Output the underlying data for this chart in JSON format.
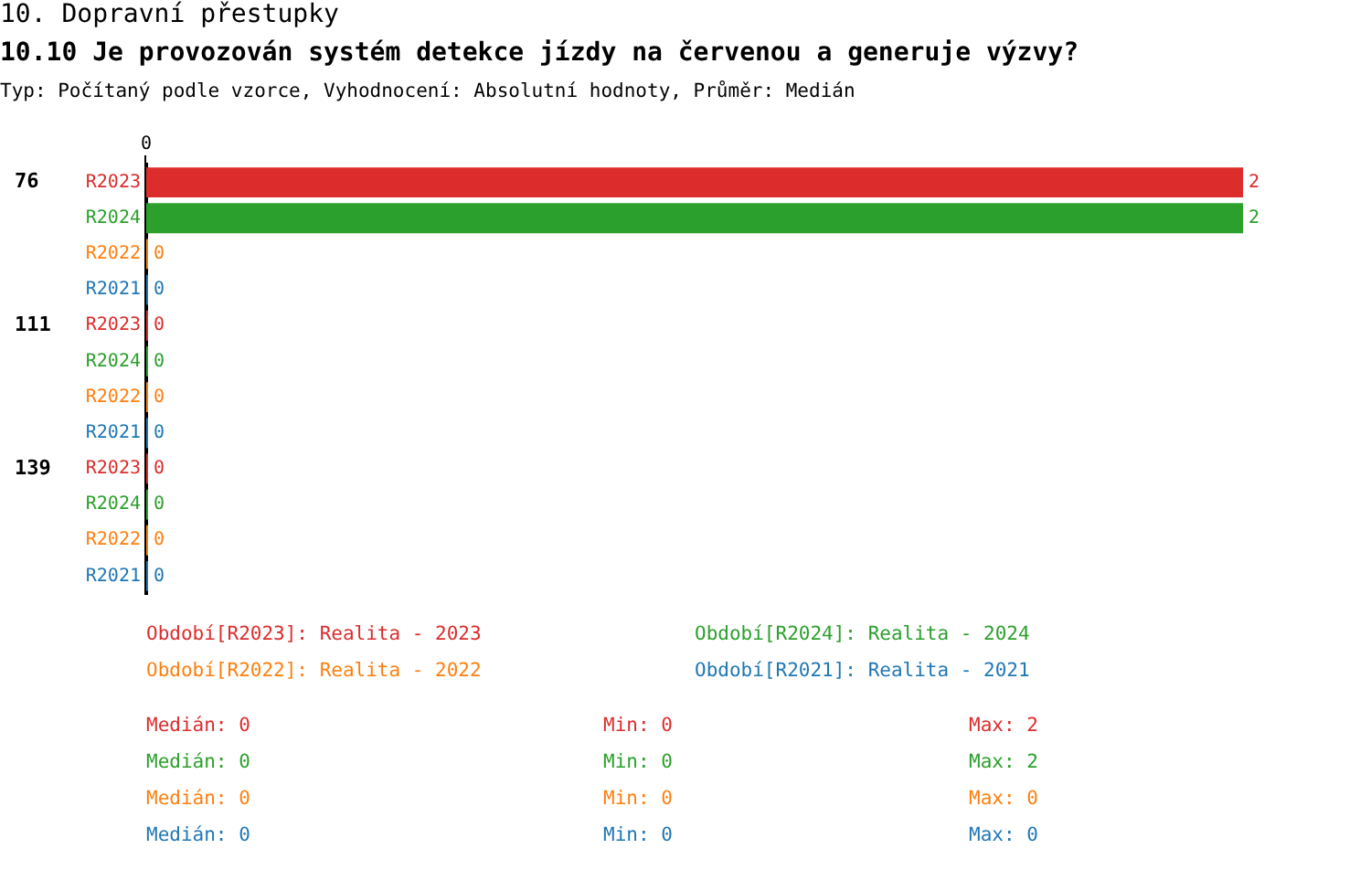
{
  "chart_data": {
    "type": "bar",
    "orientation": "horizontal",
    "stacked": true,
    "title": "10. Dopravní přestupky",
    "subtitle": "10.10 Je provozován systém detekce jízdy na červenou a generuje výzvy?",
    "categories": [
      "R2023",
      "R2024",
      "R2022",
      "R2021",
      "R2023",
      "R2024",
      "R2022",
      "R2021",
      "R2023",
      "R2024",
      "R2022",
      "R2021"
    ],
    "series": [
      {
        "name": "Období[R2023]: Realita - 2023",
        "color": "#dd2c2c",
        "values": [
          2,
          null,
          null,
          null,
          0,
          null,
          null,
          null,
          0,
          null,
          null,
          null
        ]
      },
      {
        "name": "Období[R2024]: Realita - 2024",
        "color": "#2ca02c",
        "values": [
          null,
          2,
          null,
          null,
          null,
          0,
          null,
          null,
          null,
          0,
          null,
          null
        ]
      },
      {
        "name": "Období[R2022]: Realita - 2022",
        "color": "#ff7f0e",
        "values": [
          null,
          null,
          0,
          null,
          null,
          null,
          0,
          null,
          null,
          null,
          0,
          null
        ]
      },
      {
        "name": "Období[R2021]: Realita - 2021",
        "color": "#1f77b4",
        "values": [
          null,
          null,
          null,
          0,
          null,
          null,
          null,
          0,
          null,
          null,
          null,
          0
        ]
      }
    ],
    "legend": "bottom",
    "data_labels": true,
    "annotations": [
      "Typ: Počítaný podle vzorce, Vyhodnocení: Absolutní hodnoty, Průměr: Medián",
      "0",
      "76",
      "111",
      "139",
      "Medián: 0",
      "Min: 0",
      "Max: 2",
      "Medián: 0",
      "Min: 0",
      "Max: 2",
      "Medián: 0",
      "Min: 0",
      "Max: 0",
      "Medián: 0",
      "Min: 0",
      "Max: 0"
    ]
  }
}
